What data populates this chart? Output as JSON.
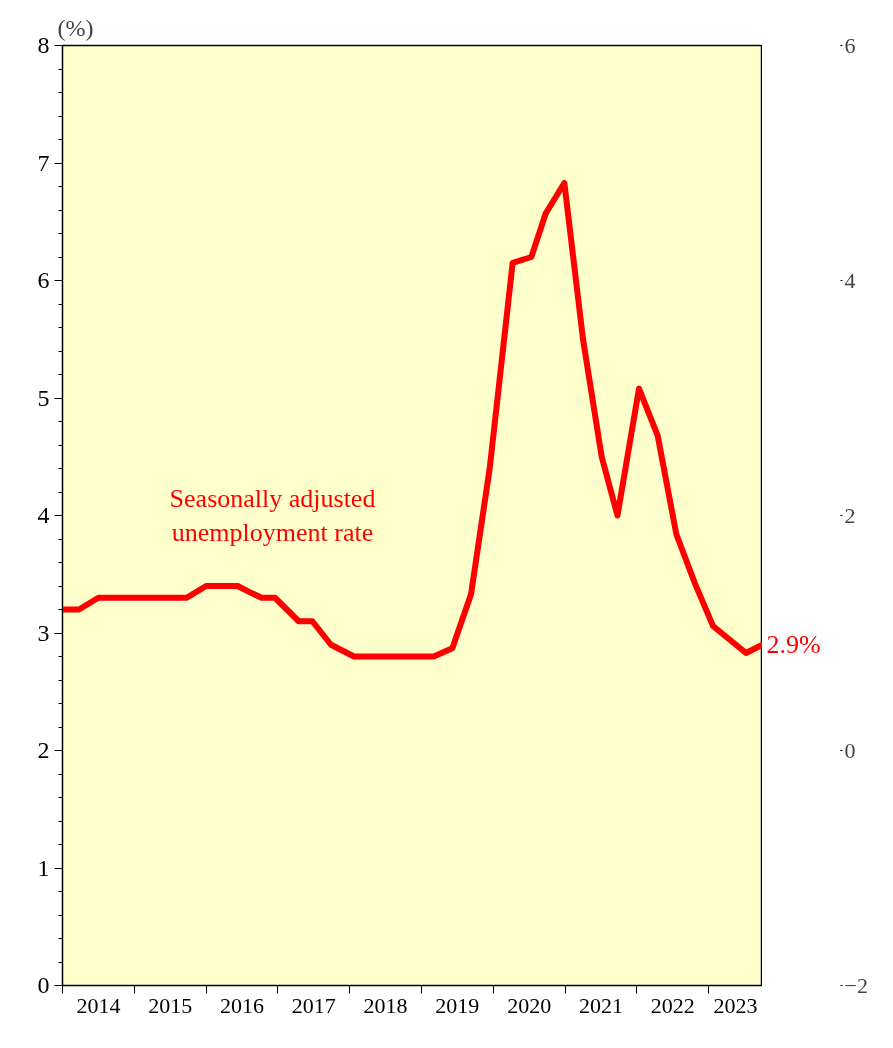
{
  "chart_data": {
    "type": "line",
    "ylabel": "(%)",
    "x": [
      2014.0,
      2014.23,
      2014.5,
      2014.75,
      2015.0,
      2015.25,
      2015.5,
      2015.73,
      2016.0,
      2016.25,
      2016.44,
      2016.6,
      2016.77,
      2016.96,
      2017.29,
      2017.48,
      2017.74,
      2018.06,
      2018.5,
      2019.0,
      2019.17,
      2019.43,
      2019.69,
      2019.95,
      2020.27,
      2020.53,
      2020.73,
      2020.99,
      2021.25,
      2021.51,
      2021.73,
      2022.03,
      2022.29,
      2022.55,
      2022.81,
      2023.06,
      2023.32,
      2023.52,
      2023.75
    ],
    "series": [
      {
        "name": "Seasonally adjusted unemployment rate",
        "color": "#ff0000",
        "values": [
          3.2,
          3.2,
          3.3,
          3.3,
          3.3,
          3.3,
          3.3,
          3.3,
          3.4,
          3.4,
          3.4,
          3.35,
          3.3,
          3.3,
          3.1,
          3.1,
          2.9,
          2.8,
          2.8,
          2.8,
          2.8,
          2.87,
          3.33,
          4.4,
          6.15,
          6.2,
          6.57,
          6.83,
          5.5,
          4.5,
          4.0,
          5.08,
          4.68,
          3.84,
          3.42,
          3.06,
          2.93,
          2.83,
          2.9
        ]
      }
    ],
    "annotations": [
      {
        "text": "2.9%",
        "x": 2023.75,
        "y": 2.9
      }
    ],
    "xlim": [
      2014.0,
      2023.75
    ],
    "xticks": [
      {
        "value": 2014,
        "label": null
      },
      {
        "value": 2015,
        "label": null
      },
      {
        "value": 2016,
        "label": null
      },
      {
        "value": 2017,
        "label": null
      },
      {
        "value": 2018,
        "label": null
      },
      {
        "value": 2019,
        "label": null
      },
      {
        "value": 2020,
        "label": null
      },
      {
        "value": 2021,
        "label": null
      },
      {
        "value": 2022,
        "label": null
      },
      {
        "value": 2023,
        "label": null
      },
      {
        "value": 2014.5,
        "label": "2014"
      },
      {
        "value": 2015.5,
        "label": "2015"
      },
      {
        "value": 2016.5,
        "label": "2016"
      },
      {
        "value": 2017.5,
        "label": "2017"
      },
      {
        "value": 2018.5,
        "label": "2018"
      },
      {
        "value": 2019.5,
        "label": "2019"
      },
      {
        "value": 2020.5,
        "label": "2020"
      },
      {
        "value": 2021.5,
        "label": "2021"
      },
      {
        "value": 2022.5,
        "label": "2022"
      },
      {
        "value": 2023.375,
        "label": "2023"
      }
    ],
    "ylim": [
      0,
      8
    ],
    "yticks": [
      0,
      1,
      2,
      3,
      4,
      5,
      6,
      7,
      8
    ],
    "y2lim": [
      -2,
      6
    ],
    "y2ticks": [
      -2,
      0,
      2,
      4,
      6
    ],
    "grid": false,
    "legend": false,
    "marker": "none",
    "line_style": "solid"
  }
}
